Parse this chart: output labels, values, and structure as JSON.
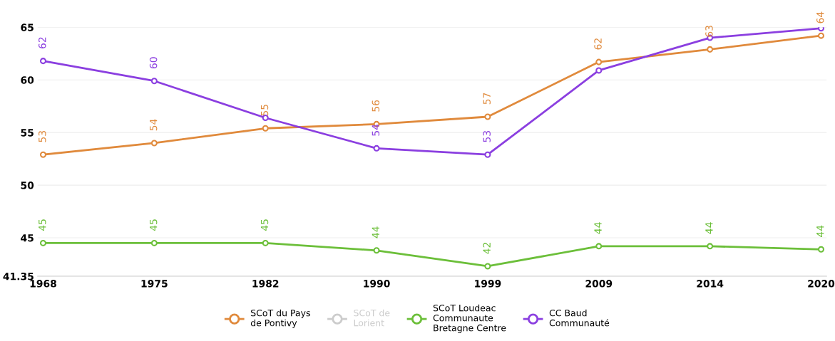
{
  "chart_data": {
    "type": "line",
    "categories": [
      "1968",
      "1975",
      "1982",
      "1990",
      "1999",
      "2009",
      "2014",
      "2020"
    ],
    "ylim": [
      41.35,
      65
    ],
    "yticks": [
      41.35,
      45,
      50,
      55,
      60,
      65
    ],
    "grid": "y",
    "legend": "bottom",
    "marker": "circle",
    "line_style": "solid",
    "series": [
      {
        "name": "SCoT du Pays\nde Pontivy",
        "color": "#e08a3c",
        "values": [
          52.9,
          54.0,
          55.4,
          55.8,
          56.5,
          61.7,
          62.9,
          64.2
        ],
        "value_labels": [
          "53",
          "54",
          "55",
          "56",
          "57",
          "62",
          "63",
          "64"
        ]
      },
      {
        "name": "SCoT de\nLorient",
        "color": "#cccccc",
        "values": [
          null,
          null,
          null,
          null,
          null,
          null,
          null,
          null
        ]
      },
      {
        "name": "SCoT Loudeac\nCommunaute\nBretagne Centre",
        "color": "#6cbf3a",
        "values": [
          44.5,
          44.5,
          44.5,
          43.8,
          42.3,
          44.2,
          44.2,
          43.9
        ],
        "value_labels": [
          "45",
          "45",
          "45",
          "44",
          "42",
          "44",
          "44",
          "44"
        ]
      },
      {
        "name": "CC Baud\nCommunauté",
        "color": "#8b3fe0",
        "values": [
          61.8,
          59.9,
          56.4,
          53.5,
          52.9,
          60.9,
          64.0,
          64.9
        ],
        "value_labels": [
          "62",
          "60",
          null,
          "54",
          "53",
          null,
          null,
          null
        ]
      }
    ]
  }
}
